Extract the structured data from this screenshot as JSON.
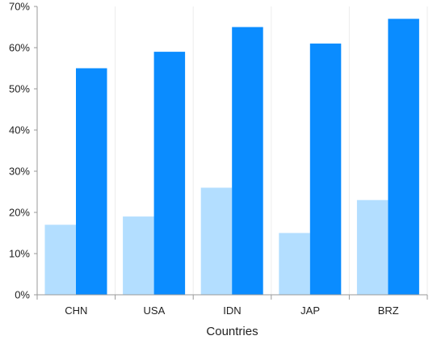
{
  "chart_data": {
    "type": "bar",
    "title": "",
    "xlabel": "Countries",
    "ylabel": "",
    "categories": [
      "CHN",
      "USA",
      "IDN",
      "JAP",
      "BRZ"
    ],
    "series": [
      {
        "values": [
          17,
          19,
          26,
          15,
          23
        ],
        "color": "#b3deff"
      },
      {
        "values": [
          55,
          59,
          65,
          61,
          67
        ],
        "color": "#0a8cff"
      }
    ],
    "ylim": [
      0,
      70
    ],
    "ytick_step": 10,
    "ytick_suffix": "%",
    "grid": {
      "x": true,
      "y": false
    },
    "legend": "none"
  }
}
